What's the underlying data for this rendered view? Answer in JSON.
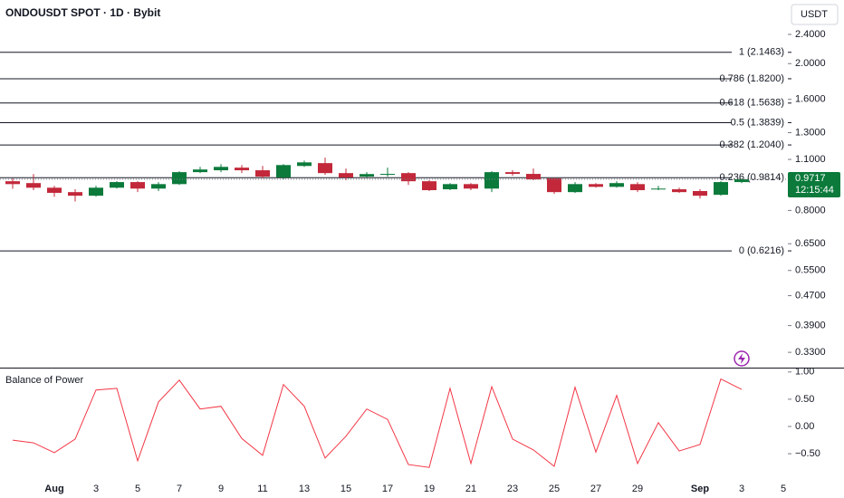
{
  "chart_data": [
    {
      "type": "candlestick",
      "title": "ONDOUSDT SPOT · 1D · Bybit",
      "currency_button": "USDT",
      "categories": [
        null,
        null,
        "Aug",
        null,
        "3",
        null,
        "5",
        null,
        "7",
        null,
        "9",
        null,
        "11",
        null,
        "13",
        null,
        "15",
        null,
        "17",
        null,
        "19",
        null,
        "21",
        null,
        "23",
        null,
        "25",
        null,
        "27",
        null,
        "29",
        null,
        null,
        "Sep",
        null,
        "3",
        null,
        "5"
      ],
      "open": [
        0.96,
        0.949,
        0.922,
        0.897,
        0.877,
        0.922,
        0.955,
        0.917,
        0.943,
        1.016,
        1.028,
        1.045,
        1.028,
        0.983,
        1.056,
        1.075,
        1.01,
        0.988,
        0.999,
        1.01,
        0.96,
        0.913,
        0.943,
        0.917,
        1.016,
        1.005,
        0.977,
        0.897,
        0.943,
        0.927,
        0.943,
        0.913,
        0.913,
        0.903,
        0.882,
        0.955,
        null,
        null
      ],
      "high": [
        0.977,
        1.004,
        0.933,
        0.913,
        0.933,
        0.96,
        0.96,
        0.955,
        1.022,
        1.05,
        1.068,
        1.062,
        1.056,
        1.068,
        1.092,
        1.112,
        1.039,
        1.016,
        1.045,
        1.016,
        0.966,
        0.949,
        0.949,
        1.022,
        1.028,
        1.039,
        0.983,
        0.955,
        0.949,
        0.96,
        0.955,
        0.933,
        0.922,
        0.913,
        0.96,
        0.977,
        null,
        null
      ],
      "low": [
        0.916,
        0.908,
        0.871,
        0.846,
        0.872,
        0.917,
        0.897,
        0.903,
        0.938,
        1.01,
        1.016,
        1.01,
        0.977,
        0.971,
        1.05,
        0.999,
        0.966,
        0.983,
        0.988,
        0.938,
        0.903,
        0.908,
        0.908,
        0.897,
        0.993,
        0.966,
        0.887,
        0.892,
        0.922,
        0.922,
        0.897,
        0.908,
        0.892,
        0.862,
        0.877,
        0.949,
        null,
        null
      ],
      "close": [
        0.943,
        0.922,
        0.893,
        0.877,
        0.922,
        0.955,
        0.917,
        0.943,
        1.016,
        1.033,
        1.05,
        1.028,
        0.988,
        1.062,
        1.08,
        1.01,
        0.983,
        1.004,
        1.005,
        0.96,
        0.908,
        0.943,
        0.917,
        1.016,
        1.005,
        0.971,
        0.897,
        0.943,
        0.927,
        0.949,
        0.908,
        0.917,
        0.897,
        0.877,
        0.955,
        0.9717,
        null,
        null
      ],
      "up_color": "#0b7a3b",
      "down_color": "#c2283a",
      "log_scale": true,
      "ylim": [
        0.3,
        2.975
      ],
      "yticks": [
        {
          "value": 2.4,
          "label": "2.4000"
        },
        {
          "value": 2.0,
          "label": "2.0000"
        },
        {
          "value": 1.6,
          "label": "1.6000"
        },
        {
          "value": 1.3,
          "label": "1.3000"
        },
        {
          "value": 1.1,
          "label": "1.1000"
        },
        {
          "value": 0.8,
          "label": "0.8000"
        },
        {
          "value": 0.65,
          "label": "0.6500"
        },
        {
          "value": 0.55,
          "label": "0.5500"
        },
        {
          "value": 0.47,
          "label": "0.4700"
        },
        {
          "value": 0.39,
          "label": "0.3900"
        },
        {
          "value": 0.33,
          "label": "0.3300"
        }
      ],
      "fib_levels": [
        {
          "label": "1 (2.1463)",
          "value": 2.1463
        },
        {
          "label": "0.786 (1.8200)",
          "value": 1.82
        },
        {
          "label": "0.618 (1.5638)",
          "value": 1.5638
        },
        {
          "label": "0.5 (1.3839)",
          "value": 1.3839
        },
        {
          "label": "0.382 (1.2040)",
          "value": 1.204
        },
        {
          "label": "0.236 (0.9814)",
          "value": 0.9814
        },
        {
          "label": "0 (0.6216)",
          "value": 0.6216
        }
      ],
      "countdown": "12:15:44"
    },
    {
      "type": "line",
      "title": "Balance of Power",
      "color": "#f23645",
      "values": [
        -0.25,
        -0.3,
        -0.48,
        -0.23,
        0.67,
        0.7,
        -0.63,
        0.45,
        0.85,
        0.32,
        0.37,
        -0.22,
        -0.53,
        0.77,
        0.37,
        -0.58,
        -0.18,
        0.32,
        0.13,
        -0.7,
        -0.75,
        0.7,
        -0.68,
        0.73,
        -0.23,
        -0.43,
        -0.73,
        0.72,
        -0.47,
        0.57,
        -0.68,
        0.07,
        -0.45,
        -0.33,
        0.87,
        0.68,
        null,
        null
      ],
      "ylim": [
        -0.98,
        1.08
      ],
      "yticks": [
        {
          "value": 1,
          "label": "1.00"
        },
        {
          "value": 0.5,
          "label": "0.50"
        },
        {
          "value": 0,
          "label": "0.00"
        },
        {
          "value": -0.5,
          "label": "−0.50"
        }
      ]
    }
  ]
}
